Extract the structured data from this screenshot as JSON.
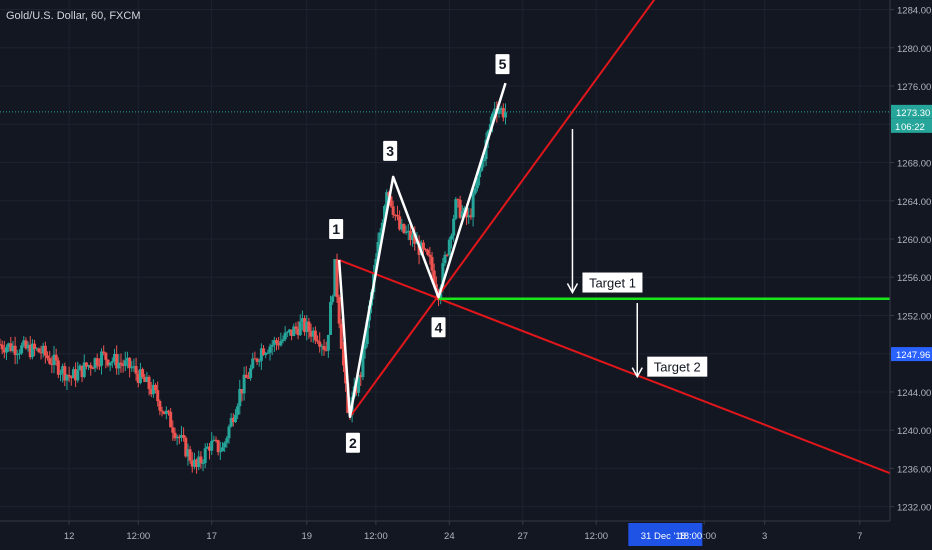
{
  "title": "Gold/U.S. Dollar, 60, FXCM",
  "colors": {
    "background": "#131722",
    "grid": "#1e2230",
    "axis_text": "#b2b5be",
    "up": "#26a69a",
    "down": "#ef5350",
    "trendline": "#e0161b",
    "target_line": "#19e619",
    "wave_line": "#ffffff",
    "price_tag": "#26a69a",
    "cursor_tag": "#2962ff",
    "cursor_date_tag": "#1e53e5"
  },
  "chart_data": {
    "type": "candlestick",
    "symbol": "Gold/U.S. Dollar",
    "timeframe": "60",
    "source": "FXCM",
    "y_range": [
      1230.5,
      1285
    ],
    "y_ticks": [
      1284.0,
      1280.0,
      1276.0,
      1272.0,
      1268.0,
      1264.0,
      1260.0,
      1256.0,
      1252.0,
      1248.0,
      1244.0,
      1240.0,
      1236.0,
      1232.0
    ],
    "y_tick_labels": [
      "1284.00",
      "1280.00",
      "1276.00",
      "1272.00",
      "1268.00",
      "1264.00",
      "1260.00",
      "1256.00",
      "1252.00",
      "1248.00",
      "1244.00",
      "1240.00",
      "1236.00",
      "1232.00"
    ],
    "x_range": [
      0,
      206
    ],
    "x_ticks": [
      {
        "label": "12",
        "bar": 16
      },
      {
        "label": "12:00",
        "bar": 32
      },
      {
        "label": "17",
        "bar": 49
      },
      {
        "label": "19",
        "bar": 71
      },
      {
        "label": "12:00",
        "bar": 87
      },
      {
        "label": "24",
        "bar": 104
      },
      {
        "label": "27",
        "bar": 121
      },
      {
        "label": "12:00",
        "bar": 138
      },
      {
        "label": "18:00",
        "bar": 163
      },
      {
        "label": "3",
        "bar": 177
      },
      {
        "label": "7",
        "bar": 199
      }
    ],
    "cursor_date_label": "31 Dec '18",
    "cursor_time_label": "18:00",
    "cursor_date_bar": 154,
    "current_price": "1273.30",
    "countdown": "06:22",
    "countdown_partial": "1",
    "cursor_price": "1247.96",
    "cursor_price_value": 1247.96,
    "candles_seed": 7,
    "path_points": [
      {
        "bar": 0,
        "price": 1249.0
      },
      {
        "bar": 10,
        "price": 1248.2
      },
      {
        "bar": 17,
        "price": 1245.5
      },
      {
        "bar": 24,
        "price": 1247.8
      },
      {
        "bar": 31,
        "price": 1246.5
      },
      {
        "bar": 36,
        "price": 1244.0
      },
      {
        "bar": 41,
        "price": 1240.0
      },
      {
        "bar": 46,
        "price": 1236.0
      },
      {
        "bar": 49,
        "price": 1238.5
      },
      {
        "bar": 52,
        "price": 1238.0
      },
      {
        "bar": 56,
        "price": 1244.0
      },
      {
        "bar": 61,
        "price": 1248.5
      },
      {
        "bar": 66,
        "price": 1249.5
      },
      {
        "bar": 70,
        "price": 1251.0
      },
      {
        "bar": 74,
        "price": 1250.0
      },
      {
        "bar": 76,
        "price": 1248.5
      },
      {
        "bar": 78,
        "price": 1257.0
      },
      {
        "bar": 81,
        "price": 1241.5
      },
      {
        "bar": 84,
        "price": 1246.0
      },
      {
        "bar": 87,
        "price": 1256.0
      },
      {
        "bar": 90,
        "price": 1265.5
      },
      {
        "bar": 93,
        "price": 1261.0
      },
      {
        "bar": 96,
        "price": 1260.0
      },
      {
        "bar": 100,
        "price": 1257.5
      },
      {
        "bar": 102,
        "price": 1254.5
      },
      {
        "bar": 106,
        "price": 1263.5
      },
      {
        "bar": 109,
        "price": 1262.0
      },
      {
        "bar": 112,
        "price": 1268.0
      },
      {
        "bar": 115,
        "price": 1274.0
      },
      {
        "bar": 117,
        "price": 1273.3
      }
    ],
    "wave_points": [
      {
        "label": "1",
        "bar": 78.5,
        "price": 1257.8
      },
      {
        "label": "2",
        "bar": 81,
        "price": 1241.4
      },
      {
        "label": "3",
        "bar": 91,
        "price": 1266.5
      },
      {
        "label": "4",
        "bar": 101.5,
        "price": 1253.9
      },
      {
        "label": "5",
        "bar": 117,
        "price": 1276.3
      }
    ],
    "trendlines": [
      {
        "from": {
          "bar": 81,
          "price": 1241.4
        },
        "to": {
          "bar": 153,
          "price": 1286.0
        }
      },
      {
        "from": {
          "bar": 78.5,
          "price": 1257.8
        },
        "to": {
          "bar": 206,
          "price": 1235.5
        }
      }
    ],
    "target_line": {
      "from_bar": 101.5,
      "to_bar": 206,
      "price": 1253.75
    },
    "targets": [
      {
        "label": "Target 1",
        "arrow_bar": 132.5,
        "arrow_from": 1271.5,
        "arrow_to": 1254.4
      },
      {
        "label": "Target 2",
        "arrow_bar": 147.5,
        "arrow_from": 1253.3,
        "arrow_to": 1245.6
      }
    ],
    "price_line": 1273.3
  }
}
